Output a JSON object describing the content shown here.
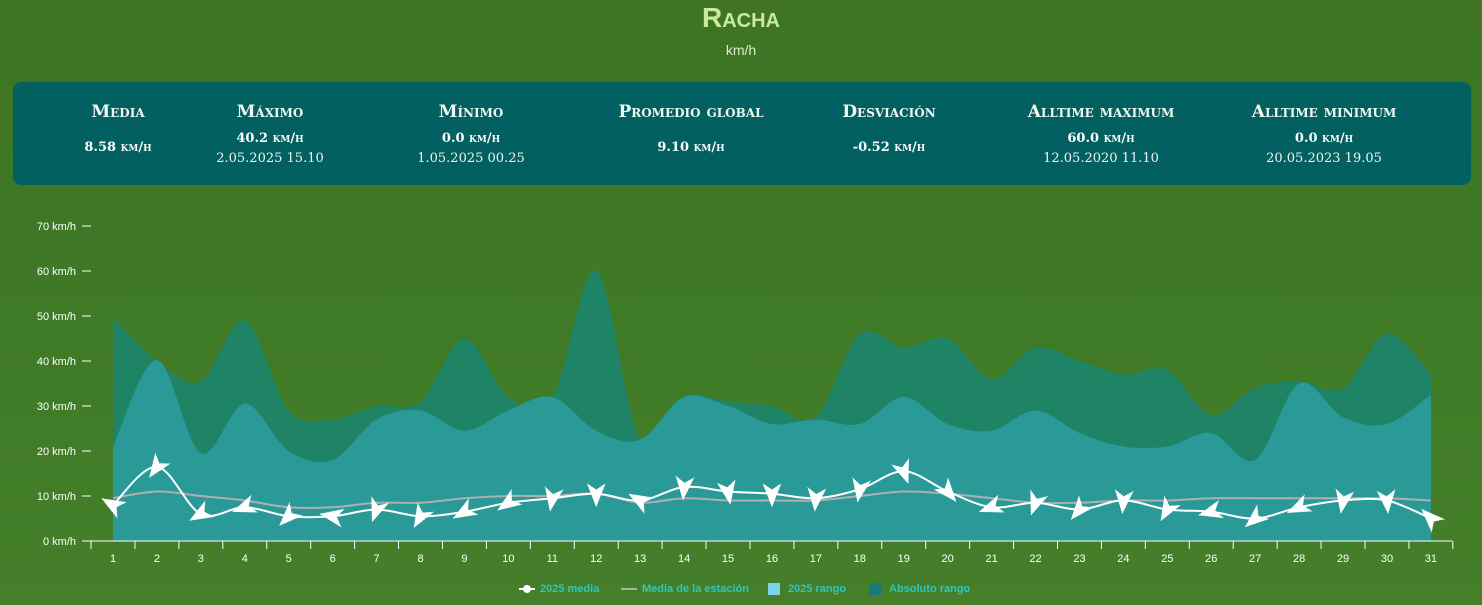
{
  "title": "Racha",
  "subtitle": "km/h",
  "stats": [
    {
      "title": "Media",
      "value": "8.58 km/h",
      "date": ""
    },
    {
      "title": "Máximo",
      "value": "40.2 km/h",
      "date": "2.05.2025 15.10"
    },
    {
      "title": "Mínimo",
      "value": "0.0 km/h",
      "date": "1.05.2025 00.25"
    },
    {
      "title": "Promedio global",
      "value": "9.10 km/h",
      "date": ""
    },
    {
      "title": "Desviación",
      "value": "-0.52 km/h",
      "date": ""
    },
    {
      "title": "Alltime maximum",
      "value": "60.0 km/h",
      "date": "12.05.2020 11.10"
    },
    {
      "title": "Alltime minimum",
      "value": "0.0 km/h",
      "date": "20.05.2023 19.05"
    }
  ],
  "legend": {
    "media_2025": "2025 media",
    "station_mean": "Media de la estación",
    "range_2025": "2025 rango",
    "absolute_range": "Absoluto rango"
  },
  "colors": {
    "background": "#3f7a26",
    "panel": "#026060",
    "absolute_range": "#1f8466",
    "range_2025": "#2a9a98",
    "media_2025": "#ffffff",
    "station_mean": "#b0b0b0",
    "legend_text": "#2fc6c0"
  },
  "chart_data": {
    "type": "area",
    "x": [
      1,
      2,
      3,
      4,
      5,
      6,
      7,
      8,
      9,
      10,
      11,
      12,
      13,
      14,
      15,
      16,
      17,
      18,
      19,
      20,
      21,
      22,
      23,
      24,
      25,
      26,
      27,
      28,
      29,
      30,
      31
    ],
    "y_ticks": [
      "0 km/h",
      "10 km/h",
      "20 km/h",
      "30 km/h",
      "40 km/h",
      "50 km/h",
      "60 km/h",
      "70 km/h"
    ],
    "ylim": [
      0,
      70
    ],
    "grid": false,
    "legend_position": "bottom",
    "series": [
      {
        "name": "Absoluto rango",
        "kind": "arearange",
        "low": [
          0,
          0,
          0,
          0,
          0,
          0,
          0,
          0,
          0,
          0,
          0,
          0,
          0,
          0,
          0,
          0,
          0,
          0,
          0,
          0,
          0,
          0,
          0,
          0,
          0,
          0,
          0,
          0,
          0,
          0,
          0
        ],
        "high": [
          49.5,
          40,
          35.5,
          49,
          29,
          27,
          30,
          31,
          45,
          32,
          32,
          60,
          22.5,
          32,
          31,
          30,
          27.5,
          46,
          43,
          45,
          36,
          43,
          40,
          37,
          38,
          28,
          34,
          35.5,
          34,
          46,
          37
        ]
      },
      {
        "name": "2025 rango",
        "kind": "arearange",
        "low": [
          0,
          0,
          0,
          0,
          0,
          0,
          0,
          0,
          0,
          0,
          0,
          0,
          0,
          0,
          0,
          0,
          0,
          0,
          0,
          0,
          0,
          0,
          0,
          0,
          0,
          0,
          0,
          0,
          0,
          0,
          0
        ],
        "high": [
          21,
          40.2,
          19.5,
          30.5,
          20,
          18,
          27,
          29,
          24.5,
          29,
          32,
          24.5,
          22.5,
          32,
          30,
          26,
          27,
          26,
          32,
          26,
          24.5,
          29,
          24,
          21,
          21,
          24,
          18,
          35,
          27.5,
          26,
          32.5
        ]
      },
      {
        "name": "Media de la estación",
        "kind": "line",
        "values": [
          9.5,
          11,
          10,
          9,
          7.5,
          7.5,
          8.5,
          8.5,
          9.5,
          10,
          10,
          10.5,
          8.5,
          9.5,
          9,
          9,
          9,
          10,
          11,
          10.5,
          9.5,
          8.5,
          8.5,
          9,
          9,
          9.5,
          9.5,
          9.5,
          9.5,
          9.5,
          9
        ]
      },
      {
        "name": "2025 media",
        "kind": "line",
        "values": [
          8,
          16.5,
          6,
          7.5,
          5.5,
          5.5,
          7,
          5.5,
          6.5,
          8.5,
          9.5,
          10.5,
          9,
          12,
          11,
          10.5,
          9.5,
          11.5,
          15.5,
          11,
          7.5,
          8.5,
          7,
          9,
          7,
          6.5,
          5,
          7.5,
          9,
          9,
          5
        ],
        "wind_direction_arrows": true
      }
    ]
  }
}
